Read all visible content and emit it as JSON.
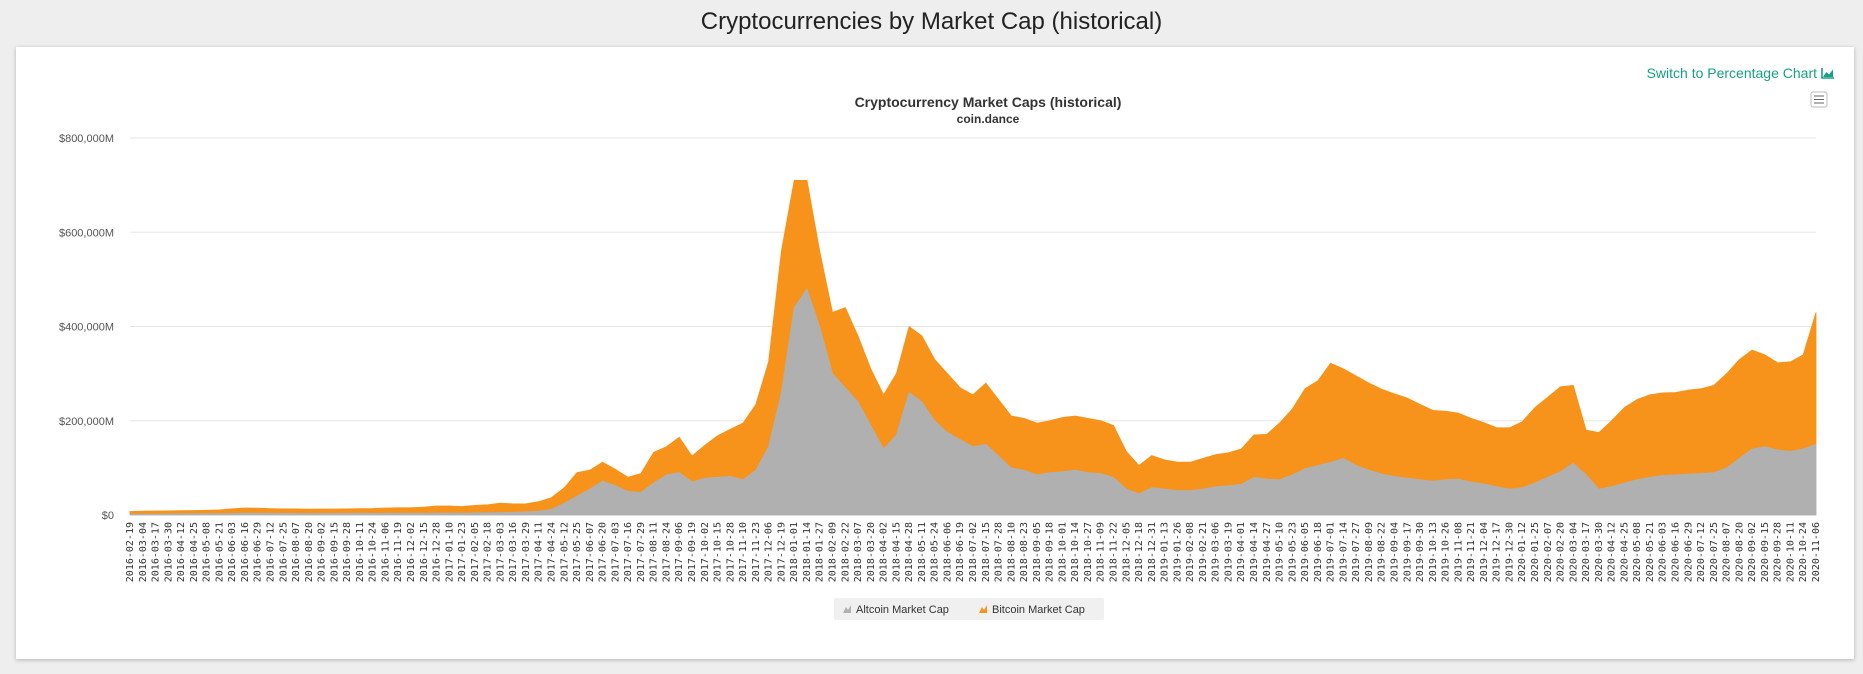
{
  "page": {
    "title": "Cryptocurrencies by Market Cap (historical)"
  },
  "switch_link": {
    "label": "Switch to Percentage Chart",
    "icon": "area-chart-icon",
    "color": "#16a085"
  },
  "menu": {
    "icon": "hamburger-menu-icon"
  },
  "chart_data": {
    "type": "area",
    "stacked": true,
    "title": "Cryptocurrency Market Caps (historical)",
    "subtitle": "coin.dance",
    "xlabel": "",
    "ylabel": "",
    "ylim": [
      0,
      800000
    ],
    "yticks": [
      "$0",
      "$200,000M",
      "$400,000M",
      "$600,000M",
      "$800,000M"
    ],
    "ytick_values": [
      0,
      200000,
      400000,
      600000,
      800000
    ],
    "grid": true,
    "legend_position": "bottom-center",
    "x_labels": [
      "2016-02-19",
      "2016-03-04",
      "2016-03-17",
      "2016-03-30",
      "2016-04-12",
      "2016-04-25",
      "2016-05-08",
      "2016-05-21",
      "2016-06-03",
      "2016-06-16",
      "2016-06-29",
      "2016-07-12",
      "2016-07-25",
      "2016-08-07",
      "2016-08-20",
      "2016-09-02",
      "2016-09-15",
      "2016-09-28",
      "2016-10-11",
      "2016-10-24",
      "2016-11-06",
      "2016-11-19",
      "2016-12-02",
      "2016-12-15",
      "2016-12-28",
      "2017-01-10",
      "2017-01-23",
      "2017-02-05",
      "2017-02-18",
      "2017-03-03",
      "2017-03-16",
      "2017-03-29",
      "2017-04-11",
      "2017-04-24",
      "2017-05-12",
      "2017-05-25",
      "2017-06-07",
      "2017-06-20",
      "2017-07-03",
      "2017-07-16",
      "2017-07-29",
      "2017-08-11",
      "2017-08-24",
      "2017-09-06",
      "2017-09-19",
      "2017-10-02",
      "2017-10-15",
      "2017-10-28",
      "2017-11-10",
      "2017-11-23",
      "2017-12-06",
      "2017-12-19",
      "2018-01-01",
      "2018-01-14",
      "2018-01-27",
      "2018-02-09",
      "2018-02-22",
      "2018-03-07",
      "2018-03-20",
      "2018-04-02",
      "2018-04-15",
      "2018-04-28",
      "2018-05-11",
      "2018-05-24",
      "2018-06-06",
      "2018-06-19",
      "2018-07-02",
      "2018-07-15",
      "2018-07-28",
      "2018-08-10",
      "2018-08-23",
      "2018-09-05",
      "2018-09-18",
      "2018-10-01",
      "2018-10-14",
      "2018-10-27",
      "2018-11-09",
      "2018-11-22",
      "2018-12-05",
      "2018-12-18",
      "2018-12-31",
      "2019-01-13",
      "2019-01-26",
      "2019-02-08",
      "2019-02-21",
      "2019-03-06",
      "2019-03-19",
      "2019-04-01",
      "2019-04-14",
      "2019-04-27",
      "2019-05-10",
      "2019-05-23",
      "2019-06-05",
      "2019-06-18",
      "2019-07-01",
      "2019-07-14",
      "2019-07-27",
      "2019-08-09",
      "2019-08-22",
      "2019-09-04",
      "2019-09-17",
      "2019-09-30",
      "2019-10-13",
      "2019-10-26",
      "2019-11-08",
      "2019-11-21",
      "2019-12-04",
      "2019-12-17",
      "2019-12-30",
      "2020-01-12",
      "2020-01-25",
      "2020-02-07",
      "2020-02-20",
      "2020-03-04",
      "2020-03-17",
      "2020-03-30",
      "2020-04-12",
      "2020-04-25",
      "2020-05-08",
      "2020-05-21",
      "2020-06-03",
      "2020-06-16",
      "2020-06-29",
      "2020-07-12",
      "2020-07-25",
      "2020-08-07",
      "2020-08-20",
      "2020-09-02",
      "2020-09-15",
      "2020-09-28",
      "2020-10-11",
      "2020-10-24",
      "2020-11-06"
    ],
    "series": [
      {
        "name": "Altcoin Market Cap",
        "color": "#b0b0b0",
        "values": [
          1500,
          1800,
          2000,
          2200,
          2500,
          2600,
          2700,
          2800,
          3200,
          3800,
          4000,
          3600,
          3400,
          3500,
          3200,
          3300,
          3400,
          3500,
          3600,
          3700,
          3800,
          3700,
          3600,
          3700,
          4000,
          4200,
          4100,
          4400,
          4600,
          5200,
          5600,
          6800,
          8200,
          12000,
          25000,
          40000,
          55000,
          72000,
          62000,
          50000,
          48000,
          68000,
          85000,
          90000,
          70000,
          78000,
          80000,
          82000,
          75000,
          95000,
          145000,
          260000,
          440000,
          480000,
          400000,
          300000,
          270000,
          240000,
          190000,
          140000,
          170000,
          260000,
          240000,
          200000,
          175000,
          160000,
          145000,
          150000,
          125000,
          100000,
          95000,
          85000,
          90000,
          92000,
          95000,
          90000,
          88000,
          80000,
          55000,
          45000,
          58000,
          55000,
          52000,
          52000,
          55000,
          60000,
          62000,
          65000,
          80000,
          76000,
          75000,
          85000,
          98000,
          105000,
          112000,
          120000,
          105000,
          95000,
          87000,
          82000,
          78000,
          75000,
          72000,
          75000,
          76000,
          70000,
          66000,
          60000,
          55000,
          58000,
          68000,
          80000,
          92000,
          110000,
          85000,
          55000,
          60000,
          68000,
          75000,
          80000,
          84000,
          85000,
          87000,
          88000,
          90000,
          100000,
          120000,
          140000,
          145000,
          138000,
          135000,
          140000,
          150000
        ]
      },
      {
        "name": "Bitcoin Market Cap",
        "color": "#f7931a",
        "values": [
          6000,
          6200,
          6400,
          6400,
          6700,
          7000,
          7300,
          8000,
          10000,
          11000,
          10500,
          10000,
          9600,
          9400,
          9300,
          9500,
          9300,
          9500,
          9800,
          10000,
          11000,
          11500,
          12000,
          13000,
          15000,
          15000,
          14000,
          16000,
          17000,
          20000,
          18000,
          17000,
          20000,
          25000,
          33000,
          50000,
          40000,
          40000,
          35000,
          30000,
          40000,
          65000,
          60000,
          75000,
          55000,
          70000,
          88000,
          100000,
          120000,
          140000,
          180000,
          300000,
          270000,
          230000,
          160000,
          130000,
          170000,
          140000,
          120000,
          115000,
          130000,
          140000,
          140000,
          130000,
          125000,
          110000,
          110000,
          130000,
          120000,
          110000,
          110000,
          110000,
          110000,
          115000,
          115000,
          115000,
          112000,
          110000,
          80000,
          60000,
          68000,
          62000,
          60000,
          60000,
          65000,
          68000,
          70000,
          75000,
          90000,
          95000,
          120000,
          140000,
          170000,
          180000,
          210000,
          190000,
          190000,
          185000,
          180000,
          175000,
          170000,
          160000,
          150000,
          145000,
          140000,
          135000,
          130000,
          125000,
          130000,
          140000,
          160000,
          170000,
          180000,
          165000,
          95000,
          120000,
          140000,
          160000,
          170000,
          175000,
          175000,
          175000,
          178000,
          180000,
          185000,
          200000,
          210000,
          210000,
          195000,
          185000,
          190000,
          200000,
          280000
        ]
      }
    ]
  }
}
